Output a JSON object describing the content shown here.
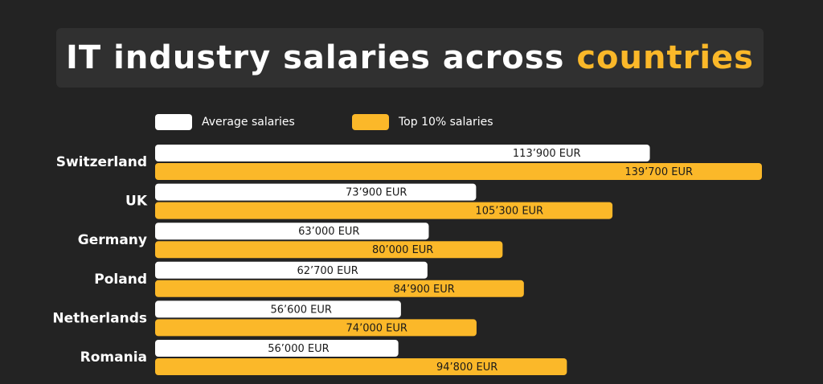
{
  "title": {
    "main": "IT industry salaries across",
    "accent": "countries"
  },
  "colors": {
    "background": "#232323",
    "title_box": "#303030",
    "average": "#ffffff",
    "top10": "#fbb829",
    "accent": "#fbb829"
  },
  "chart_data": {
    "type": "bar",
    "orientation": "horizontal",
    "title": "IT industry salaries across countries",
    "categories": [
      "Switzerland",
      "UK",
      "Germany",
      "Poland",
      "Netherlands",
      "Romania"
    ],
    "series": [
      {
        "name": "Average salaries",
        "values": [
          113900,
          73900,
          63000,
          62700,
          56600,
          56000
        ],
        "labels": [
          "113’900 EUR",
          "73’900 EUR",
          "63’000 EUR",
          "62’700 EUR",
          "56’600 EUR",
          "56’000 EUR"
        ],
        "color": "#ffffff"
      },
      {
        "name": "Top 10% salaries",
        "values": [
          139700,
          105300,
          80000,
          84900,
          74000,
          94800
        ],
        "labels": [
          "139’700 EUR",
          "105’300 EUR",
          "80’000 EUR",
          "84’900 EUR",
          "74’000 EUR",
          "94’800 EUR"
        ],
        "color": "#fbb829"
      }
    ],
    "xlim": [
      0,
      139700
    ],
    "grid": false,
    "legend": "top-left"
  }
}
